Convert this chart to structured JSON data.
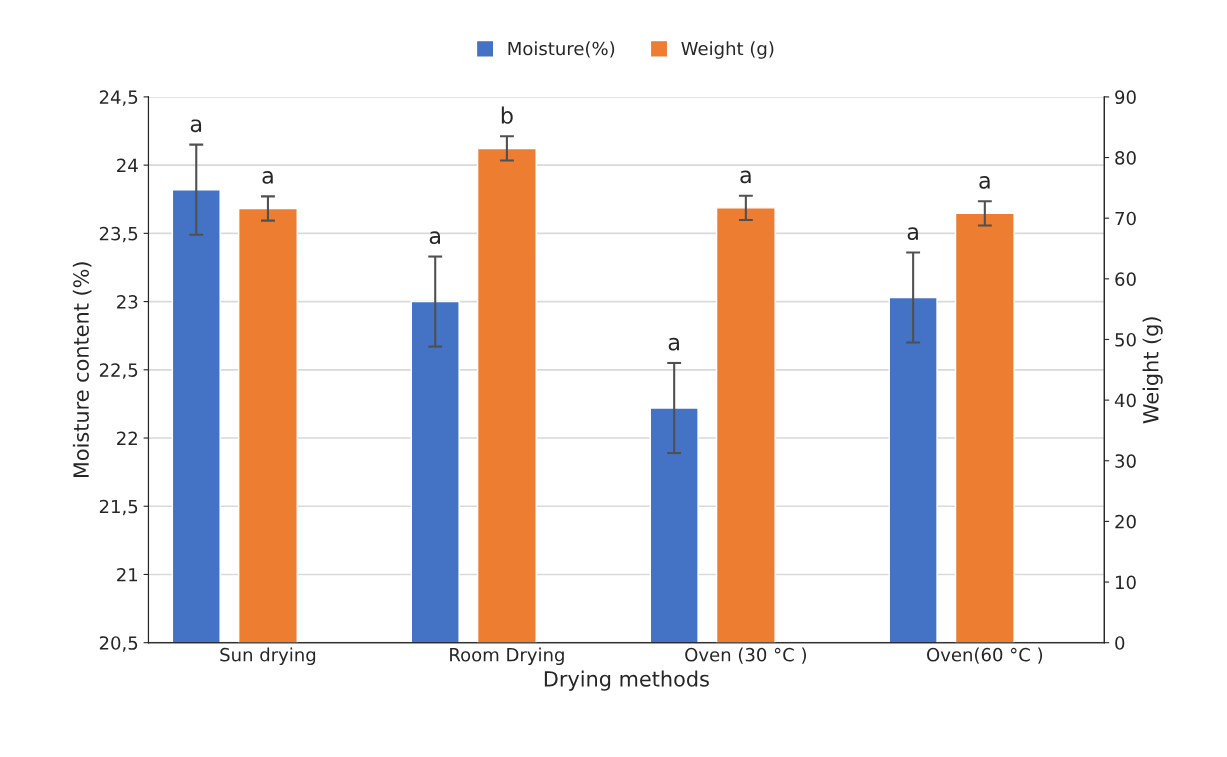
{
  "chart_data": {
    "type": "bar",
    "categories": [
      "Sun drying",
      "Room Drying",
      "Oven (30 °C )",
      "Oven(60 °C )"
    ],
    "xlabel": "Drying methods",
    "ylabel": "Moisture content (%)",
    "y2label": "Weight (g)",
    "series": [
      {
        "name": "Moisture(%)",
        "color": "#4472c4",
        "values": [
          23.82,
          23.0,
          22.22,
          23.03
        ],
        "errors": [
          0.33,
          0.33,
          0.33,
          0.33
        ],
        "value_labels": [
          "a",
          "a",
          "a",
          "a"
        ]
      },
      {
        "name": "Weight (g)",
        "color": "#ed7d31",
        "axis": "y2",
        "values": [
          71.6,
          81.5,
          71.7,
          70.8
        ],
        "errors": [
          2,
          2,
          2,
          2
        ],
        "value_labels": [
          "a",
          "b",
          "a",
          "a"
        ]
      }
    ],
    "ylim": [
      20.5,
      24.5
    ],
    "yticks": [
      {
        "value": 20.5,
        "label": "20,5"
      },
      21,
      {
        "value": 21.5,
        "label": "21,5"
      },
      22,
      {
        "value": 22.5,
        "label": "22,5"
      },
      23,
      {
        "value": 23.5,
        "label": "23,5"
      },
      24,
      {
        "value": 24.5,
        "label": "24,5"
      }
    ],
    "y2lim": [
      0,
      90
    ],
    "y2ticks": [
      0,
      10,
      20,
      30,
      40,
      50,
      60,
      70,
      80,
      90
    ],
    "grid": "y",
    "legend": "top"
  }
}
